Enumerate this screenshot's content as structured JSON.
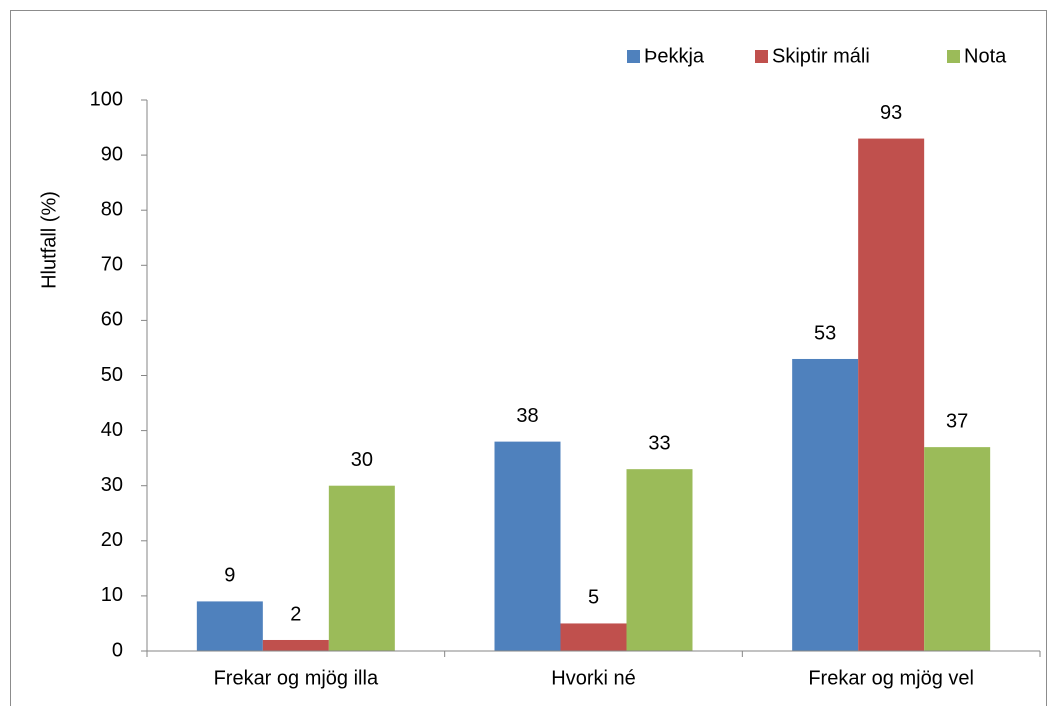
{
  "chart_data": {
    "type": "bar",
    "y_axis_label": "Hlutfall (%)",
    "categories": [
      "Frekar og mjög illa",
      "Hvorki né",
      "Frekar og mjög vel"
    ],
    "series": [
      {
        "name": "Þekkja",
        "color": "#4f81bd",
        "values": [
          9,
          38,
          53
        ]
      },
      {
        "name": "Skiptir máli",
        "color": "#c0504d",
        "values": [
          2,
          5,
          93
        ]
      },
      {
        "name": "Nota",
        "color": "#9bbb59",
        "values": [
          30,
          33,
          37
        ]
      }
    ],
    "ylim": [
      0,
      100
    ],
    "yticks": [
      0,
      10,
      20,
      30,
      40,
      50,
      60,
      70,
      80,
      90,
      100
    ],
    "legend": "top-right"
  }
}
